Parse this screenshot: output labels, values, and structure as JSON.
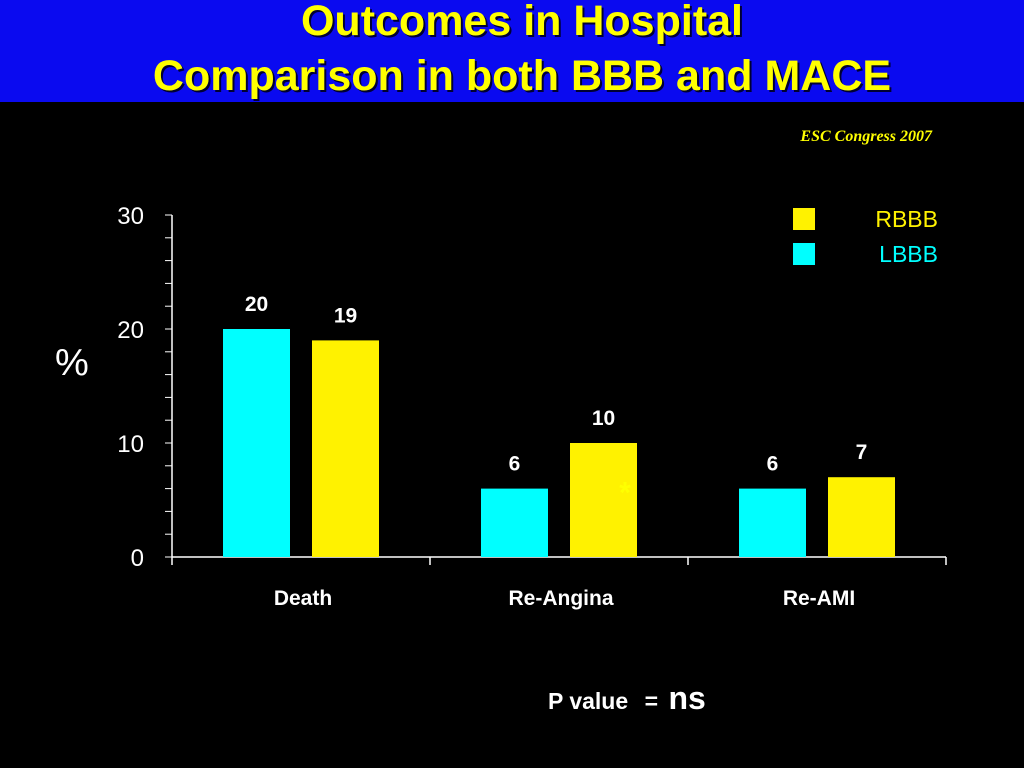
{
  "slide": {
    "title_line1": "Outcomes in Hospital",
    "title_line2": "Comparison in both BBB and MACE",
    "source": "ESC Congress 2007",
    "footer_label": "P value",
    "footer_eq": "=",
    "footer_value": "ns"
  },
  "colors": {
    "header_bg": "#0a0af0",
    "title": "#ffff00",
    "rbbb": "#fff200",
    "lbbb": "#00ffff",
    "background": "#000000"
  },
  "chart_data": {
    "type": "bar",
    "categories": [
      "Death",
      "Re-Angina",
      "Re-AMI"
    ],
    "series": [
      {
        "name": "LBBB",
        "values": [
          20,
          6,
          6
        ],
        "color": "#00ffff"
      },
      {
        "name": "RBBB",
        "values": [
          19,
          10,
          7
        ],
        "color": "#fff200"
      }
    ],
    "data_labels": [
      [
        "20",
        "6",
        "6"
      ],
      [
        "19",
        "10",
        "7"
      ]
    ],
    "ylabel": "%",
    "ylim": [
      0,
      30
    ],
    "yticks": [
      "0",
      "10",
      "20",
      "30"
    ],
    "legend": [
      {
        "label": "RBBB",
        "color": "#fff200"
      },
      {
        "label": "LBBB",
        "color": "#00ffff"
      }
    ],
    "legend_position": "top-right",
    "annotation": "*",
    "grid": false
  }
}
